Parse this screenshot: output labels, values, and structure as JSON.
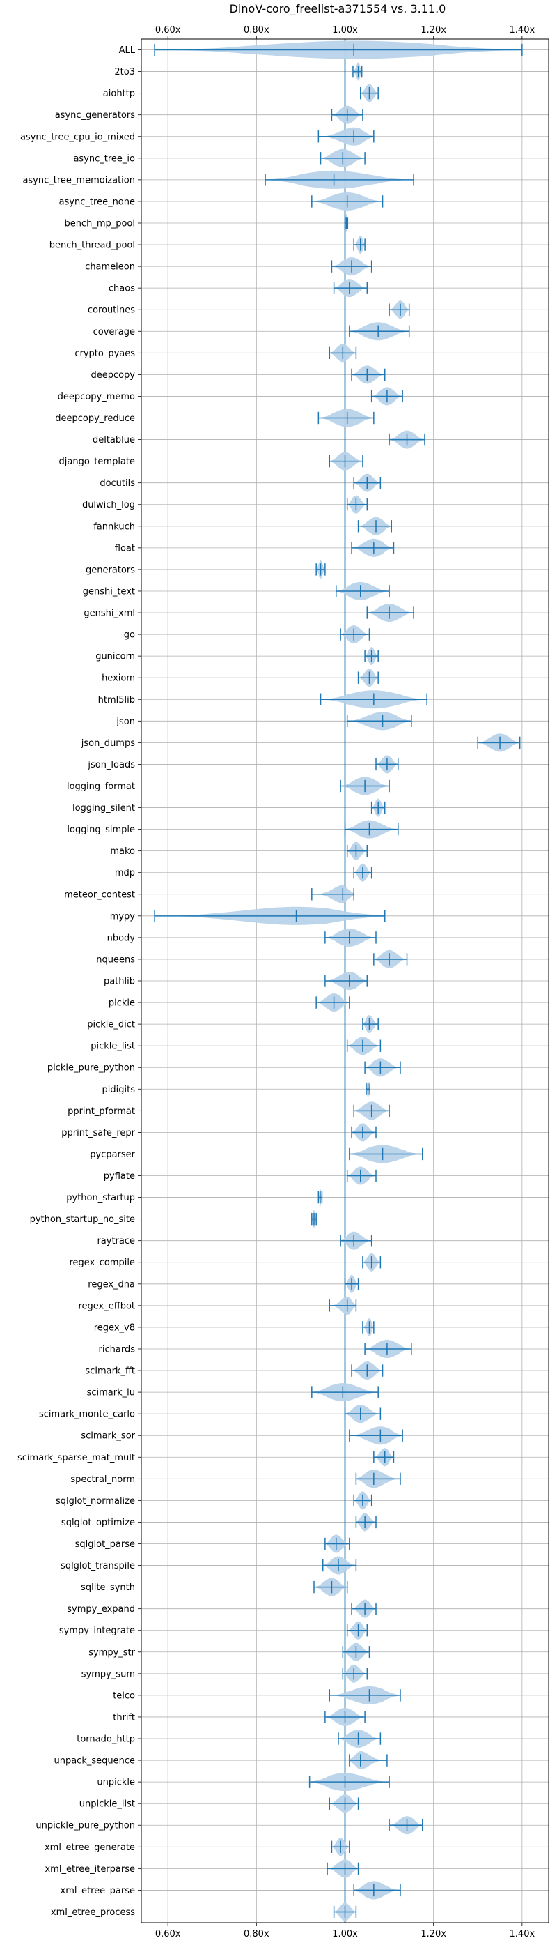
{
  "chart_data": {
    "type": "violin",
    "title": "DinoV-coro_freelist-a371554 vs. 3.11.0",
    "x_tick_labels": [
      "0.60x",
      "0.80x",
      "1.00x",
      "1.20x",
      "1.40x"
    ],
    "x_ticks": [
      0.6,
      0.8,
      1.0,
      1.2,
      1.4
    ],
    "xlim": [
      0.54,
      1.46
    ],
    "reference_line": 1.0,
    "grid": true,
    "color": "#1f77b4",
    "fill_color": "#b9d3ea",
    "benchmarks": [
      {
        "name": "ALL",
        "min": 0.57,
        "max": 1.4,
        "mean": 1.02,
        "median": 1.02
      },
      {
        "name": "2to3",
        "min": 1.018,
        "max": 1.038,
        "mean": 1.03,
        "median": 1.03
      },
      {
        "name": "aiohttp",
        "min": 1.035,
        "max": 1.075,
        "mean": 1.055,
        "median": 1.055
      },
      {
        "name": "async_generators",
        "min": 0.97,
        "max": 1.04,
        "mean": 1.005,
        "median": 1.005
      },
      {
        "name": "async_tree_cpu_io_mixed",
        "min": 0.94,
        "max": 1.065,
        "mean": 1.02,
        "median": 1.02
      },
      {
        "name": "async_tree_io",
        "min": 0.945,
        "max": 1.045,
        "mean": 0.995,
        "median": 0.995
      },
      {
        "name": "async_tree_memoization",
        "min": 0.82,
        "max": 1.155,
        "mean": 0.975,
        "median": 0.975
      },
      {
        "name": "async_tree_none",
        "min": 0.925,
        "max": 1.085,
        "mean": 1.005,
        "median": 1.005
      },
      {
        "name": "bench_mp_pool",
        "min": 1.0,
        "max": 1.006,
        "mean": 1.003,
        "median": 1.003
      },
      {
        "name": "bench_thread_pool",
        "min": 1.02,
        "max": 1.045,
        "mean": 1.035,
        "median": 1.035
      },
      {
        "name": "chameleon",
        "min": 0.97,
        "max": 1.06,
        "mean": 1.015,
        "median": 1.015
      },
      {
        "name": "chaos",
        "min": 0.975,
        "max": 1.05,
        "mean": 1.01,
        "median": 1.01
      },
      {
        "name": "coroutines",
        "min": 1.1,
        "max": 1.145,
        "mean": 1.125,
        "median": 1.125
      },
      {
        "name": "coverage",
        "min": 1.01,
        "max": 1.145,
        "mean": 1.075,
        "median": 1.075
      },
      {
        "name": "crypto_pyaes",
        "min": 0.965,
        "max": 1.025,
        "mean": 0.995,
        "median": 0.995
      },
      {
        "name": "deepcopy",
        "min": 1.015,
        "max": 1.09,
        "mean": 1.05,
        "median": 1.05
      },
      {
        "name": "deepcopy_memo",
        "min": 1.06,
        "max": 1.13,
        "mean": 1.095,
        "median": 1.095
      },
      {
        "name": "deepcopy_reduce",
        "min": 0.94,
        "max": 1.065,
        "mean": 1.005,
        "median": 1.005
      },
      {
        "name": "deltablue",
        "min": 1.1,
        "max": 1.18,
        "mean": 1.14,
        "median": 1.14
      },
      {
        "name": "django_template",
        "min": 0.965,
        "max": 1.04,
        "mean": 1.0,
        "median": 1.0
      },
      {
        "name": "docutils",
        "min": 1.02,
        "max": 1.08,
        "mean": 1.05,
        "median": 1.05
      },
      {
        "name": "dulwich_log",
        "min": 1.005,
        "max": 1.05,
        "mean": 1.025,
        "median": 1.025
      },
      {
        "name": "fannkuch",
        "min": 1.03,
        "max": 1.105,
        "mean": 1.07,
        "median": 1.07
      },
      {
        "name": "float",
        "min": 1.015,
        "max": 1.11,
        "mean": 1.065,
        "median": 1.065
      },
      {
        "name": "generators",
        "min": 0.935,
        "max": 0.955,
        "mean": 0.945,
        "median": 0.945
      },
      {
        "name": "genshi_text",
        "min": 0.98,
        "max": 1.1,
        "mean": 1.035,
        "median": 1.035
      },
      {
        "name": "genshi_xml",
        "min": 1.05,
        "max": 1.155,
        "mean": 1.1,
        "median": 1.1
      },
      {
        "name": "go",
        "min": 0.99,
        "max": 1.055,
        "mean": 1.02,
        "median": 1.02
      },
      {
        "name": "gunicorn",
        "min": 1.045,
        "max": 1.075,
        "mean": 1.06,
        "median": 1.06
      },
      {
        "name": "hexiom",
        "min": 1.03,
        "max": 1.075,
        "mean": 1.055,
        "median": 1.055
      },
      {
        "name": "html5lib",
        "min": 0.945,
        "max": 1.185,
        "mean": 1.065,
        "median": 1.065
      },
      {
        "name": "json",
        "min": 1.005,
        "max": 1.15,
        "mean": 1.085,
        "median": 1.085
      },
      {
        "name": "json_dumps",
        "min": 1.3,
        "max": 1.395,
        "mean": 1.35,
        "median": 1.35
      },
      {
        "name": "json_loads",
        "min": 1.07,
        "max": 1.12,
        "mean": 1.095,
        "median": 1.095
      },
      {
        "name": "logging_format",
        "min": 0.99,
        "max": 1.1,
        "mean": 1.045,
        "median": 1.045
      },
      {
        "name": "logging_silent",
        "min": 1.06,
        "max": 1.09,
        "mean": 1.075,
        "median": 1.075
      },
      {
        "name": "logging_simple",
        "min": 1.0,
        "max": 1.12,
        "mean": 1.055,
        "median": 1.055
      },
      {
        "name": "mako",
        "min": 1.005,
        "max": 1.05,
        "mean": 1.025,
        "median": 1.025
      },
      {
        "name": "mdp",
        "min": 1.02,
        "max": 1.06,
        "mean": 1.04,
        "median": 1.04
      },
      {
        "name": "meteor_contest",
        "min": 0.925,
        "max": 1.02,
        "mean": 0.995,
        "median": 0.995
      },
      {
        "name": "mypy",
        "min": 0.57,
        "max": 1.09,
        "mean": 0.89,
        "median": 0.89
      },
      {
        "name": "nbody",
        "min": 0.955,
        "max": 1.07,
        "mean": 1.01,
        "median": 1.01
      },
      {
        "name": "nqueens",
        "min": 1.065,
        "max": 1.14,
        "mean": 1.1,
        "median": 1.1
      },
      {
        "name": "pathlib",
        "min": 0.955,
        "max": 1.05,
        "mean": 1.01,
        "median": 1.01
      },
      {
        "name": "pickle",
        "min": 0.935,
        "max": 1.01,
        "mean": 0.975,
        "median": 0.975
      },
      {
        "name": "pickle_dict",
        "min": 1.04,
        "max": 1.075,
        "mean": 1.055,
        "median": 1.055
      },
      {
        "name": "pickle_list",
        "min": 1.005,
        "max": 1.08,
        "mean": 1.04,
        "median": 1.04
      },
      {
        "name": "pickle_pure_python",
        "min": 1.045,
        "max": 1.125,
        "mean": 1.08,
        "median": 1.08
      },
      {
        "name": "pidigits",
        "min": 1.048,
        "max": 1.056,
        "mean": 1.052,
        "median": 1.052
      },
      {
        "name": "pprint_pformat",
        "min": 1.02,
        "max": 1.1,
        "mean": 1.06,
        "median": 1.06
      },
      {
        "name": "pprint_safe_repr",
        "min": 1.015,
        "max": 1.07,
        "mean": 1.04,
        "median": 1.04
      },
      {
        "name": "pycparser",
        "min": 1.01,
        "max": 1.175,
        "mean": 1.085,
        "median": 1.085
      },
      {
        "name": "pyflate",
        "min": 1.005,
        "max": 1.07,
        "mean": 1.035,
        "median": 1.035
      },
      {
        "name": "python_startup",
        "min": 0.94,
        "max": 0.948,
        "mean": 0.944,
        "median": 0.944
      },
      {
        "name": "python_startup_no_site",
        "min": 0.925,
        "max": 0.935,
        "mean": 0.93,
        "median": 0.93
      },
      {
        "name": "raytrace",
        "min": 0.99,
        "max": 1.06,
        "mean": 1.02,
        "median": 1.02
      },
      {
        "name": "regex_compile",
        "min": 1.04,
        "max": 1.08,
        "mean": 1.06,
        "median": 1.06
      },
      {
        "name": "regex_dna",
        "min": 1.0,
        "max": 1.03,
        "mean": 1.015,
        "median": 1.015
      },
      {
        "name": "regex_effbot",
        "min": 0.965,
        "max": 1.025,
        "mean": 1.005,
        "median": 1.005
      },
      {
        "name": "regex_v8",
        "min": 1.04,
        "max": 1.065,
        "mean": 1.055,
        "median": 1.055
      },
      {
        "name": "richards",
        "min": 1.045,
        "max": 1.15,
        "mean": 1.095,
        "median": 1.095
      },
      {
        "name": "scimark_fft",
        "min": 1.015,
        "max": 1.085,
        "mean": 1.05,
        "median": 1.05
      },
      {
        "name": "scimark_lu",
        "min": 0.925,
        "max": 1.075,
        "mean": 0.995,
        "median": 0.995
      },
      {
        "name": "scimark_monte_carlo",
        "min": 1.0,
        "max": 1.08,
        "mean": 1.035,
        "median": 1.035
      },
      {
        "name": "scimark_sor",
        "min": 1.01,
        "max": 1.13,
        "mean": 1.08,
        "median": 1.08
      },
      {
        "name": "scimark_sparse_mat_mult",
        "min": 1.065,
        "max": 1.11,
        "mean": 1.09,
        "median": 1.09
      },
      {
        "name": "spectral_norm",
        "min": 1.025,
        "max": 1.125,
        "mean": 1.065,
        "median": 1.065
      },
      {
        "name": "sqlglot_normalize",
        "min": 1.02,
        "max": 1.06,
        "mean": 1.04,
        "median": 1.04
      },
      {
        "name": "sqlglot_optimize",
        "min": 1.025,
        "max": 1.07,
        "mean": 1.045,
        "median": 1.045
      },
      {
        "name": "sqlglot_parse",
        "min": 0.955,
        "max": 1.01,
        "mean": 0.98,
        "median": 0.98
      },
      {
        "name": "sqlglot_transpile",
        "min": 0.95,
        "max": 1.025,
        "mean": 0.985,
        "median": 0.985
      },
      {
        "name": "sqlite_synth",
        "min": 0.93,
        "max": 1.005,
        "mean": 0.97,
        "median": 0.97
      },
      {
        "name": "sympy_expand",
        "min": 1.015,
        "max": 1.07,
        "mean": 1.045,
        "median": 1.045
      },
      {
        "name": "sympy_integrate",
        "min": 1.005,
        "max": 1.05,
        "mean": 1.03,
        "median": 1.03
      },
      {
        "name": "sympy_str",
        "min": 0.995,
        "max": 1.055,
        "mean": 1.025,
        "median": 1.025
      },
      {
        "name": "sympy_sum",
        "min": 0.995,
        "max": 1.05,
        "mean": 1.02,
        "median": 1.02
      },
      {
        "name": "telco",
        "min": 0.965,
        "max": 1.125,
        "mean": 1.055,
        "median": 1.055
      },
      {
        "name": "thrift",
        "min": 0.955,
        "max": 1.045,
        "mean": 1.0,
        "median": 1.0
      },
      {
        "name": "tornado_http",
        "min": 0.985,
        "max": 1.08,
        "mean": 1.03,
        "median": 1.03
      },
      {
        "name": "unpack_sequence",
        "min": 1.01,
        "max": 1.095,
        "mean": 1.035,
        "median": 1.035
      },
      {
        "name": "unpickle",
        "min": 0.92,
        "max": 1.1,
        "mean": 1.0,
        "median": 1.0
      },
      {
        "name": "unpickle_list",
        "min": 0.965,
        "max": 1.03,
        "mean": 1.0,
        "median": 1.0
      },
      {
        "name": "unpickle_pure_python",
        "min": 1.1,
        "max": 1.175,
        "mean": 1.14,
        "median": 1.14
      },
      {
        "name": "xml_etree_generate",
        "min": 0.97,
        "max": 1.01,
        "mean": 0.99,
        "median": 0.99
      },
      {
        "name": "xml_etree_iterparse",
        "min": 0.96,
        "max": 1.03,
        "mean": 1.0,
        "median": 1.0
      },
      {
        "name": "xml_etree_parse",
        "min": 1.02,
        "max": 1.125,
        "mean": 1.065,
        "median": 1.065
      },
      {
        "name": "xml_etree_process",
        "min": 0.975,
        "max": 1.025,
        "mean": 1.0,
        "median": 1.0
      }
    ]
  }
}
